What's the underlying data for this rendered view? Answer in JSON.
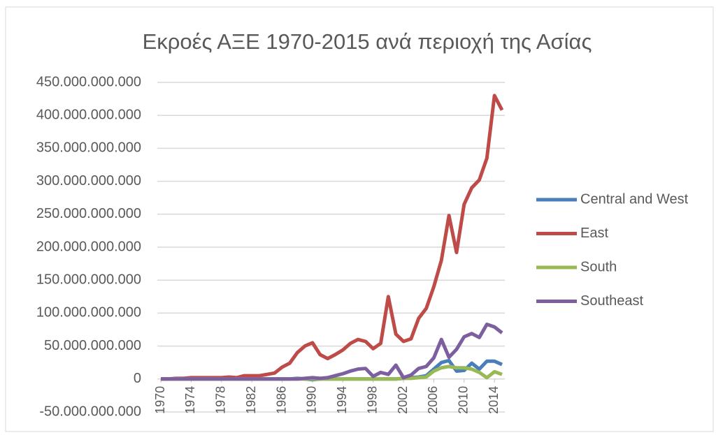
{
  "chart_data": {
    "type": "line",
    "title": "Εκροές ΑΞΕ 1970-2015 ανά περιοχή της Ασίας",
    "x": [
      1970,
      1971,
      1972,
      1973,
      1974,
      1975,
      1976,
      1977,
      1978,
      1979,
      1980,
      1981,
      1982,
      1983,
      1984,
      1985,
      1986,
      1987,
      1988,
      1989,
      1990,
      1991,
      1992,
      1993,
      1994,
      1995,
      1996,
      1997,
      1998,
      1999,
      2000,
      2001,
      2002,
      2003,
      2004,
      2005,
      2006,
      2007,
      2008,
      2009,
      2010,
      2011,
      2012,
      2013,
      2014,
      2015
    ],
    "xlim": [
      1970,
      2015
    ],
    "xticks": [
      1970,
      1974,
      1978,
      1982,
      1986,
      1990,
      1994,
      1998,
      2002,
      2006,
      2010,
      2014
    ],
    "ylim": [
      -50000000000,
      450000000000
    ],
    "yticks": [
      {
        "value": -50000000000,
        "label": "-50.000.000.000"
      },
      0,
      {
        "value": 50000000000,
        "label": "50.000.000.000"
      },
      {
        "value": 100000000000,
        "label": "100.000.000.000"
      },
      {
        "value": 150000000000,
        "label": "150.000.000.000"
      },
      {
        "value": 200000000000,
        "label": "200.000.000.000"
      },
      {
        "value": 250000000000,
        "label": "250.000.000.000"
      },
      {
        "value": 300000000000,
        "label": "300.000.000.000"
      },
      {
        "value": 350000000000,
        "label": "350.000.000.000"
      },
      {
        "value": 400000000000,
        "label": "400.000.000.000"
      },
      {
        "value": 450000000000,
        "label": "450.000.000.000"
      }
    ],
    "grid": true,
    "legend": "right",
    "series": [
      {
        "name": "Central and West",
        "color": "#4a7ebb",
        "values": [
          0,
          0,
          0,
          0,
          0,
          0,
          0,
          0,
          0,
          0,
          0,
          0,
          0,
          0,
          0,
          0,
          0,
          0,
          1000000000.0,
          0,
          -1000000000.0,
          0,
          0,
          0,
          0,
          0,
          0,
          0,
          0,
          0,
          0,
          0,
          1000000000.0,
          2000000000.0,
          3000000000.0,
          5000000000.0,
          15000000000.0,
          25000000000.0,
          28000000000.0,
          12000000000.0,
          13000000000.0,
          24000000000.0,
          15000000000.0,
          27000000000.0,
          27000000000.0,
          22000000000.0
        ]
      },
      {
        "name": "East",
        "color": "#be4b48",
        "values": [
          0,
          0,
          1000000000.0,
          1000000000.0,
          2000000000.0,
          2000000000.0,
          2000000000.0,
          2000000000.0,
          2000000000.0,
          3000000000.0,
          2000000000.0,
          5000000000.0,
          5000000000.0,
          5000000000.0,
          7000000000.0,
          9000000000.0,
          18000000000.0,
          24000000000.0,
          40000000000.0,
          50000000000.0,
          55000000000.0,
          37000000000.0,
          31000000000.0,
          37000000000.0,
          44000000000.0,
          54000000000.0,
          60000000000.0,
          57000000000.0,
          46000000000.0,
          54000000000.0,
          125000000000.0,
          68000000000.0,
          57000000000.0,
          61000000000.0,
          92000000000.0,
          107000000000.0,
          140000000000.0,
          180000000000.0,
          248000000000.0,
          192000000000.0,
          265000000000.0,
          290000000000.0,
          302000000000.0,
          335000000000.0,
          430000000000.0,
          408000000000.0
        ]
      },
      {
        "name": "South",
        "color": "#98b954",
        "values": [
          0,
          0,
          0,
          0,
          0,
          0,
          0,
          0,
          0,
          0,
          0,
          0,
          0,
          0,
          0,
          0,
          0,
          0,
          0,
          0,
          0,
          0,
          0,
          0,
          0,
          0,
          0,
          0,
          0,
          0,
          0,
          0,
          1000000000.0,
          1000000000.0,
          2000000000.0,
          3000000000.0,
          12000000000.0,
          17000000000.0,
          19000000000.0,
          17000000000.0,
          17000000000.0,
          15000000000.0,
          10000000000.0,
          2000000000.0,
          11000000000.0,
          7000000000.0
        ]
      },
      {
        "name": "Southeast",
        "color": "#7d5fa0",
        "values": [
          0,
          0,
          0,
          0,
          0,
          0,
          0,
          0,
          0,
          0,
          0,
          0,
          0,
          0,
          0,
          0,
          0,
          0,
          0,
          1000000000.0,
          2000000000.0,
          1000000000.0,
          2000000000.0,
          5000000000.0,
          8000000000.0,
          12000000000.0,
          15000000000.0,
          16000000000.0,
          4000000000.0,
          10000000000.0,
          7000000000.0,
          21000000000.0,
          2000000000.0,
          6000000000.0,
          16000000000.0,
          19000000000.0,
          32000000000.0,
          60000000000.0,
          33000000000.0,
          45000000000.0,
          64000000000.0,
          69000000000.0,
          63000000000.0,
          83000000000.0,
          79000000000.0,
          70000000000.0
        ]
      }
    ]
  }
}
